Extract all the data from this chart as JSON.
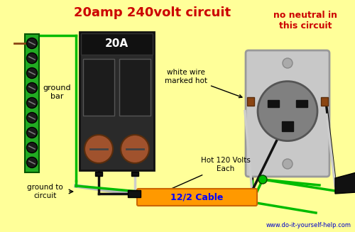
{
  "background_color": "#FFFF99",
  "title": "20amp 240volt circuit",
  "title_color": "#CC0000",
  "title_fontsize": 13,
  "subtitle": "no neutral in\nthis circuit",
  "subtitle_color": "#CC0000",
  "subtitle_fontsize": 9,
  "website": "www.do-it-yourself-help.com",
  "website_color": "#0000CC",
  "label_ground_bar": "ground\nbar",
  "label_ground_circuit": "ground to\ncircuit",
  "label_white_wire": "white wire\nmarked hot",
  "label_hot_volts": "Hot 120 Volts\nEach",
  "label_cable": "12/2 Cable",
  "green_wire_color": "#00BB00",
  "white_wire_color": "#CCCCCC",
  "black_wire_color": "#111111",
  "ground_bar_color": "#22AA22",
  "breaker_body_color": "#2a2a2a",
  "outlet_body_color": "#C0C0C0",
  "outlet_face_color": "#888888",
  "cable_box_color": "#FF9900"
}
